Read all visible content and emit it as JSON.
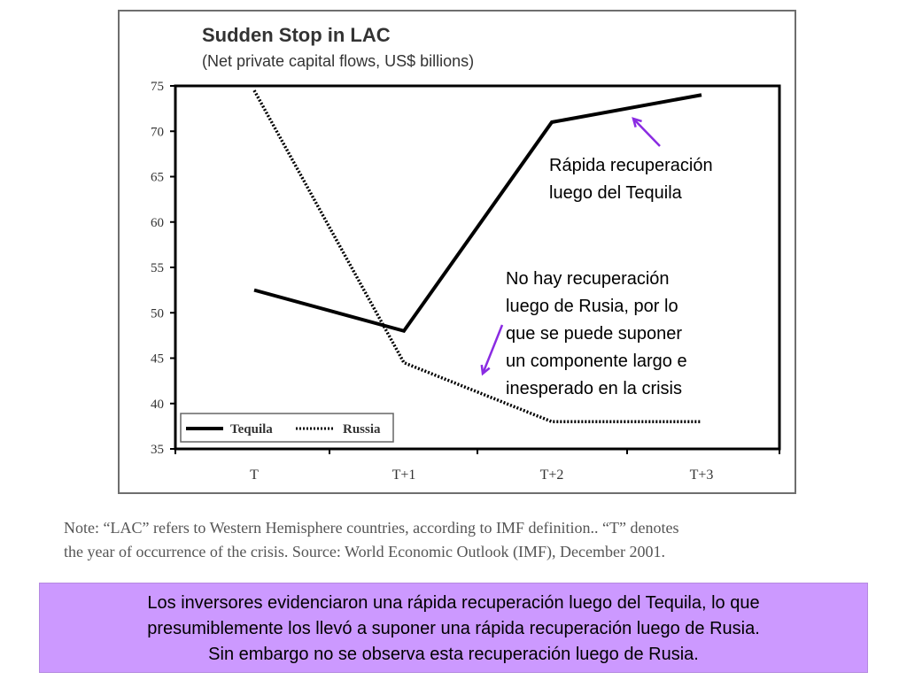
{
  "chart_data": {
    "type": "line",
    "title": "Sudden Stop in LAC",
    "subtitle": "(Net private capital flows, US$ billions)",
    "categories": [
      "T",
      "T+1",
      "T+2",
      "T+3"
    ],
    "y_ticks": [
      "75",
      "70",
      "65",
      "60",
      "55",
      "50",
      "45",
      "40",
      "35"
    ],
    "ylim": [
      35,
      75
    ],
    "grid": false,
    "legend_position": "bottom-left",
    "series": [
      {
        "name": "Tequila",
        "values": [
          52.5,
          48,
          71,
          74
        ],
        "style": "solid",
        "color": "#000000"
      },
      {
        "name": "Russia",
        "values": [
          74.5,
          44.5,
          38,
          38
        ],
        "style": "dotted",
        "color": "#000000"
      }
    ]
  },
  "annotations": {
    "tequila": {
      "lines": [
        "Rápida recuperación",
        "luego del Tequila"
      ],
      "arrow_color": "#8a2be2"
    },
    "russia": {
      "lines": [
        "No hay recuperación",
        "luego de Rusia, por lo",
        "que se puede suponer",
        "un componente largo e",
        "inesperado en la crisis"
      ],
      "arrow_color": "#8a2be2"
    }
  },
  "note": {
    "lines": [
      "Note: “LAC” refers to Western Hemisphere countries, according to IMF definition.. “T” denotes",
      "the year of occurrence of the crisis. Source: World Economic Outlook (IMF), December 2001."
    ]
  },
  "summary": {
    "lines": [
      "Los inversores evidenciaron una rápida recuperación luego del Tequila, lo que",
      "presumiblemente los llevó a suponer una rápida recuperación luego de Rusia.",
      "Sin embargo no se observa esta recuperación luego de Rusia."
    ],
    "background": "#cc99ff"
  }
}
